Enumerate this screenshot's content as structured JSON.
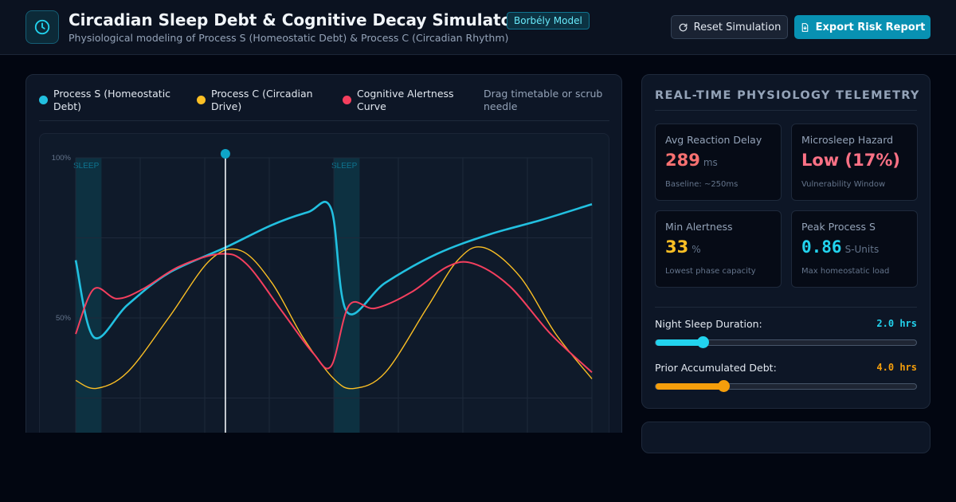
{
  "header": {
    "title": "Circadian Sleep Debt & Cognitive Decay Simulator",
    "badge": "Borbély Model",
    "subtitle": "Physiological modeling of Process S (Homeostatic Debt) & Process C (Circadian Rhythm)",
    "reset_label": "Reset Simulation",
    "export_label": "Export Risk Report",
    "logo_icon": "clock-icon"
  },
  "legend": {
    "items": [
      {
        "label": "Process S (Homeostatic Debt)",
        "color": "#22c0e0"
      },
      {
        "label": "Process C (Circadian Drive)",
        "color": "#fbbf24"
      },
      {
        "label": "Cognitive Alertness Curve",
        "color": "#f43f5e"
      }
    ],
    "hint": "Drag timetable or scrub needle"
  },
  "chart_data": {
    "type": "line",
    "ylim": [
      0,
      100
    ],
    "yticks": [
      {
        "value": 100,
        "label": "100%"
      },
      {
        "value": 50,
        "label": "50%"
      }
    ],
    "sleep_label": "SLEEP",
    "sleep_bands": [
      [
        0.0,
        0.05
      ],
      [
        0.5,
        0.55
      ]
    ],
    "needle_fraction": 0.29,
    "series": [
      {
        "name": "Process S (Homeostatic Debt)",
        "color": "#22c0e0",
        "points": [
          [
            0.0,
            68
          ],
          [
            0.035,
            44
          ],
          [
            0.1,
            54
          ],
          [
            0.18,
            64
          ],
          [
            0.29,
            72
          ],
          [
            0.38,
            79
          ],
          [
            0.45,
            83
          ],
          [
            0.495,
            84
          ],
          [
            0.525,
            52
          ],
          [
            0.6,
            61
          ],
          [
            0.7,
            70
          ],
          [
            0.8,
            76
          ],
          [
            0.9,
            80.5
          ],
          [
            1.0,
            85.5
          ]
        ]
      },
      {
        "name": "Process C (Circadian Drive)",
        "color": "#fbbf24",
        "points": [
          [
            0.0,
            30.5
          ],
          [
            0.04,
            28
          ],
          [
            0.1,
            33
          ],
          [
            0.18,
            50
          ],
          [
            0.26,
            68
          ],
          [
            0.32,
            71
          ],
          [
            0.38,
            61
          ],
          [
            0.44,
            44
          ],
          [
            0.5,
            31
          ],
          [
            0.54,
            28
          ],
          [
            0.6,
            33
          ],
          [
            0.68,
            53
          ],
          [
            0.74,
            68
          ],
          [
            0.79,
            72
          ],
          [
            0.86,
            63
          ],
          [
            0.93,
            45
          ],
          [
            1.0,
            31
          ]
        ]
      },
      {
        "name": "Cognitive Alertness Curve",
        "color": "#f43f5e",
        "points": [
          [
            0.0,
            45
          ],
          [
            0.035,
            59
          ],
          [
            0.08,
            56
          ],
          [
            0.13,
            59
          ],
          [
            0.2,
            66
          ],
          [
            0.28,
            70
          ],
          [
            0.33,
            67
          ],
          [
            0.4,
            52
          ],
          [
            0.46,
            39
          ],
          [
            0.495,
            35
          ],
          [
            0.53,
            54
          ],
          [
            0.58,
            53
          ],
          [
            0.65,
            58
          ],
          [
            0.72,
            66
          ],
          [
            0.77,
            67
          ],
          [
            0.84,
            60
          ],
          [
            0.92,
            45
          ],
          [
            1.0,
            33
          ]
        ]
      }
    ]
  },
  "telemetry": {
    "title": "REAL-TIME PHYSIOLOGY TELEMETRY",
    "cards": [
      {
        "label": "Avg Reaction Delay",
        "value": "289",
        "unit": "ms",
        "note": "Baseline: ~250ms",
        "color": "#f87171"
      },
      {
        "label": "Microsleep Hazard",
        "value": "Low (17%)",
        "unit": "",
        "note": "Vulnerability Window",
        "color": "#fb7185"
      },
      {
        "label": "Min Alertness",
        "value": "33",
        "unit": "%",
        "note": "Lowest phase capacity",
        "color": "#fbbf24"
      },
      {
        "label": "Peak Process S",
        "value": "0.86",
        "unit": "S-Units",
        "note": "Max homeostatic load",
        "color": "#22d3ee"
      }
    ]
  },
  "controls": {
    "sleep": {
      "label": "Night Sleep Duration:",
      "value_text": "2.0 hrs",
      "fraction": 0.18,
      "color": "#22d3ee"
    },
    "debt": {
      "label": "Prior Accumulated Debt:",
      "value_text": "4.0 hrs",
      "fraction": 0.26,
      "color": "#f59e0b"
    }
  }
}
